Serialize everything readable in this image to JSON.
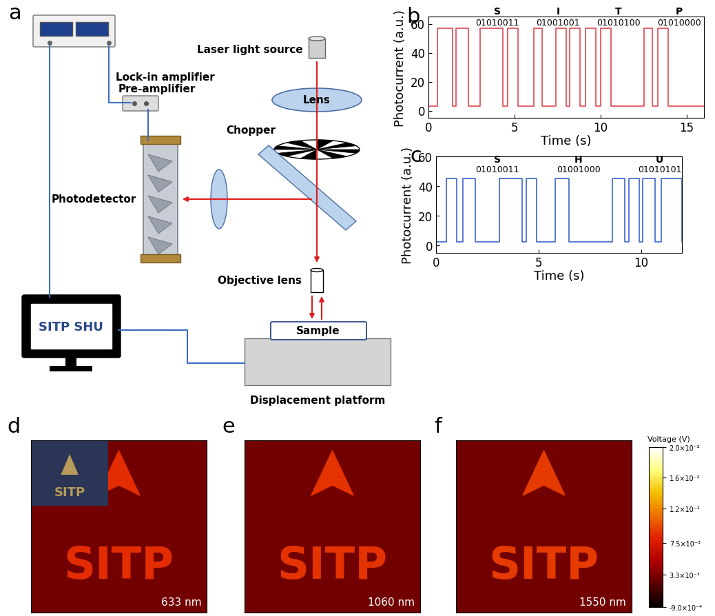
{
  "panel_labels": [
    "a",
    "b",
    "c",
    "d",
    "e",
    "f"
  ],
  "diagram": {
    "lock_in": "Lock-in amplifier",
    "pre_amp": "Pre-amplifier",
    "photodetector": "Photodetector",
    "laser": "Laser light source",
    "lens": "Lens",
    "chopper": "Chopper",
    "objective": "Objective lens",
    "sample": "Sample",
    "platform": "Displacement platform",
    "screen_text": "SITP SHU"
  },
  "chart_data": [
    {
      "type": "line",
      "x_label": "Time (s)",
      "y_label": "Photocurrent (a.u.)",
      "xlim": [
        0,
        16
      ],
      "xticks": [
        0,
        5,
        10,
        15
      ],
      "ylim": [
        -5,
        65
      ],
      "yticks": [
        0,
        20,
        40,
        60
      ],
      "color": "#e0565f",
      "low": 3,
      "high": 57,
      "pulses": [
        [
          0.5,
          1.4
        ],
        [
          1.6,
          2.3
        ],
        [
          3.0,
          4.3
        ],
        [
          4.6,
          5.2
        ],
        [
          6.1,
          6.6
        ],
        [
          7.4,
          8.0
        ],
        [
          8.2,
          8.8
        ],
        [
          9.1,
          9.7
        ],
        [
          10.0,
          10.6
        ],
        [
          12.5,
          13.0
        ],
        [
          13.3,
          13.9
        ]
      ],
      "annotations": [
        {
          "letter": "S",
          "code": "01010011"
        },
        {
          "letter": "I",
          "code": "01001001"
        },
        {
          "letter": "T",
          "code": "01010100"
        },
        {
          "letter": "P",
          "code": "01010000"
        }
      ]
    },
    {
      "type": "line",
      "x_label": "Time (s)",
      "y_label": "Photocurrent (a.u.)",
      "xlim": [
        0,
        12
      ],
      "xticks": [
        0,
        5,
        10
      ],
      "ylim": [
        -5,
        60
      ],
      "yticks": [
        0,
        20,
        40,
        60
      ],
      "color": "#4a6fd0",
      "low": 2.5,
      "high": 45,
      "pulses": [
        [
          0.5,
          1.0
        ],
        [
          1.3,
          1.9
        ],
        [
          3.1,
          4.2
        ],
        [
          4.4,
          4.9
        ],
        [
          5.8,
          6.5
        ],
        [
          8.6,
          9.2
        ],
        [
          9.4,
          9.9
        ],
        [
          10.1,
          10.7
        ],
        [
          11.0,
          12.0
        ]
      ],
      "annotations": [
        {
          "letter": "S",
          "code": "01010011"
        },
        {
          "letter": "H",
          "code": "01001000"
        },
        {
          "letter": "U",
          "code": "01010101"
        }
      ]
    }
  ],
  "maps": {
    "pattern_text": "SITP",
    "inset_text": "SITP",
    "tick_labels": false,
    "colorbar": {
      "label": "Voltage (V)",
      "range": [
        -0.0009,
        0.02
      ],
      "ticks": [
        {
          "value": 0.02,
          "label": "2.0×10⁻²"
        },
        {
          "value": 0.016,
          "label": "1.6×10⁻²"
        },
        {
          "value": 0.012,
          "label": "1.2×10⁻²"
        },
        {
          "value": 0.0075,
          "label": "7.5×10⁻³"
        },
        {
          "value": 0.0033,
          "label": "3.3×10⁻³"
        },
        {
          "value": -0.0009,
          "label": "-9.0×10⁻⁴"
        }
      ]
    },
    "images": [
      {
        "wavelength_label": "633 nm",
        "background": 0.003,
        "signal": 0.0085
      },
      {
        "wavelength_label": "1060 nm",
        "background": 0.003,
        "signal": 0.0088
      },
      {
        "wavelength_label": "1550 nm",
        "background": 0.003,
        "signal": 0.009
      }
    ]
  }
}
